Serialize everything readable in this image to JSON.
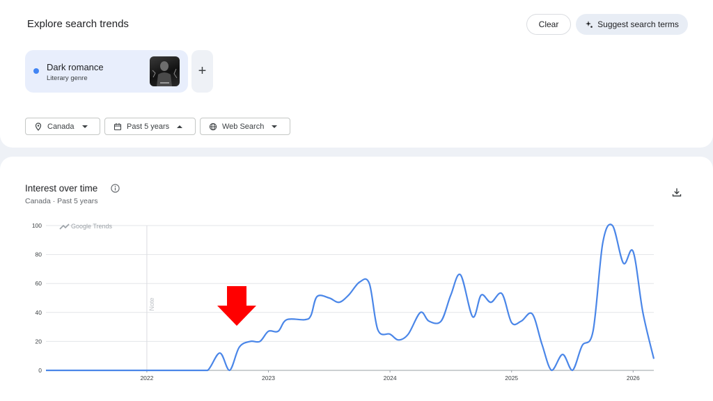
{
  "header": {
    "title": "Explore search trends",
    "clear_label": "Clear",
    "suggest_label": "Suggest search terms"
  },
  "term": {
    "name": "Dark romance",
    "type": "Literary genre",
    "dot_color": "#4285f4",
    "add_icon": "plus-icon"
  },
  "filters": [
    {
      "label": "Canada",
      "icon": "location-pin-icon",
      "expanded": false
    },
    {
      "label": "Past 5 years",
      "icon": "calendar-icon",
      "expanded": true
    },
    {
      "label": "Web Search",
      "icon": "globe-icon",
      "expanded": false
    }
  ],
  "chart_panel": {
    "title": "Interest over time",
    "subtitle": "Canada · Past 5 years",
    "watermark": "Google Trends",
    "note_label": "Note",
    "annotation": "red-down-arrow"
  },
  "chart_data": {
    "type": "line",
    "title": "Interest over time",
    "xlabel": "",
    "ylabel": "",
    "ylim": [
      0,
      100
    ],
    "yticks": [
      0,
      20,
      40,
      60,
      80,
      100
    ],
    "xticks": [
      "2022",
      "2023",
      "2024",
      "2025",
      "2026"
    ],
    "xrange": [
      2021.17,
      2026.17
    ],
    "grid": true,
    "series": [
      {
        "name": "Dark romance",
        "color": "#4a86e8",
        "points": [
          [
            2021.17,
            0
          ],
          [
            2021.6,
            0
          ],
          [
            2022.0,
            0
          ],
          [
            2022.4,
            0
          ],
          [
            2022.5,
            0
          ],
          [
            2022.6,
            12
          ],
          [
            2022.68,
            0
          ],
          [
            2022.76,
            16
          ],
          [
            2022.85,
            20
          ],
          [
            2022.93,
            20
          ],
          [
            2023.0,
            27
          ],
          [
            2023.08,
            27
          ],
          [
            2023.15,
            35
          ],
          [
            2023.3,
            35
          ],
          [
            2023.35,
            38
          ],
          [
            2023.4,
            51
          ],
          [
            2023.5,
            50
          ],
          [
            2023.58,
            47
          ],
          [
            2023.66,
            52
          ],
          [
            2023.75,
            61
          ],
          [
            2023.83,
            60
          ],
          [
            2023.9,
            28
          ],
          [
            2024.0,
            25
          ],
          [
            2024.07,
            21
          ],
          [
            2024.15,
            25
          ],
          [
            2024.25,
            40
          ],
          [
            2024.32,
            34
          ],
          [
            2024.42,
            34
          ],
          [
            2024.5,
            52
          ],
          [
            2024.58,
            66
          ],
          [
            2024.68,
            37
          ],
          [
            2024.75,
            52
          ],
          [
            2024.83,
            47
          ],
          [
            2024.92,
            53
          ],
          [
            2025.0,
            33
          ],
          [
            2025.08,
            34
          ],
          [
            2025.17,
            39
          ],
          [
            2025.25,
            18
          ],
          [
            2025.33,
            0
          ],
          [
            2025.42,
            11
          ],
          [
            2025.5,
            0
          ],
          [
            2025.58,
            17
          ],
          [
            2025.67,
            27
          ],
          [
            2025.75,
            88
          ],
          [
            2025.83,
            100
          ],
          [
            2025.92,
            74
          ],
          [
            2026.0,
            82
          ],
          [
            2026.08,
            40
          ],
          [
            2026.17,
            8
          ]
        ]
      }
    ]
  }
}
